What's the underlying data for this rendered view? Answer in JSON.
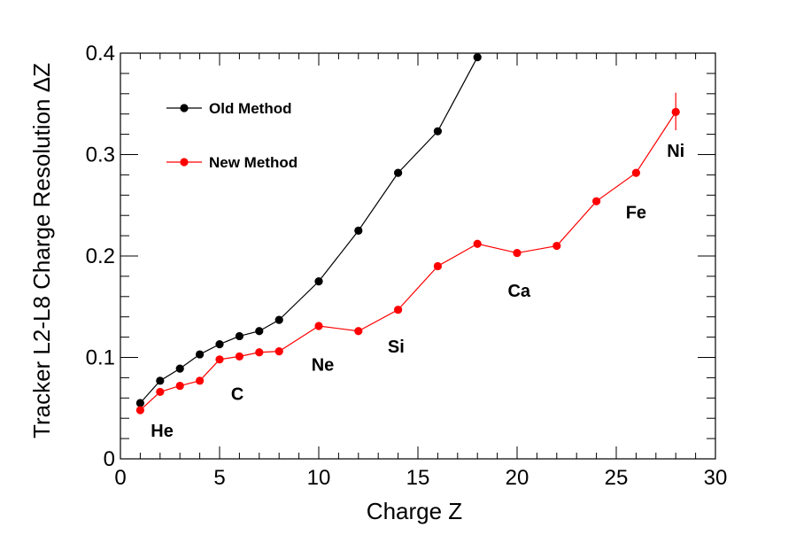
{
  "chart_data": {
    "type": "line",
    "xlabel": "Charge Z",
    "ylabel": "Tracker L2-L8 Charge Resolution ΔZ",
    "xlim": [
      0,
      30
    ],
    "ylim": [
      0,
      0.4
    ],
    "x_ticks": [
      0,
      5,
      10,
      15,
      20,
      25,
      30
    ],
    "x_tick_labels": [
      "0",
      "5",
      "10",
      "15",
      "20",
      "25",
      "30"
    ],
    "y_ticks": [
      0,
      0.1,
      0.2,
      0.3,
      0.4
    ],
    "y_tick_labels": [
      "0",
      "0.1",
      "0.2",
      "0.3",
      "0.4"
    ],
    "grid": false,
    "legend_position": "top-left",
    "series": [
      {
        "name": "Old Method",
        "color": "#000000",
        "x": [
          1,
          2,
          3,
          4,
          5,
          6,
          7,
          8,
          10,
          12,
          14,
          16,
          18
        ],
        "y": [
          0.055,
          0.077,
          0.089,
          0.103,
          0.113,
          0.121,
          0.126,
          0.137,
          0.175,
          0.225,
          0.282,
          0.323,
          0.396
        ]
      },
      {
        "name": "New Method",
        "color": "#ff0000",
        "x": [
          1,
          2,
          3,
          4,
          5,
          6,
          7,
          8,
          10,
          12,
          14,
          16,
          18,
          20,
          22,
          24,
          26,
          28
        ],
        "y": [
          0.048,
          0.066,
          0.072,
          0.077,
          0.098,
          0.101,
          0.105,
          0.106,
          0.131,
          0.126,
          0.147,
          0.19,
          0.212,
          0.203,
          0.21,
          0.254,
          0.282,
          0.342
        ],
        "error_bars": [
          {
            "x": 28,
            "low": 0.324,
            "high": 0.361
          }
        ]
      }
    ],
    "annotations": [
      {
        "text": "He",
        "x": 2.1,
        "y": 0.022
      },
      {
        "text": "C",
        "x": 5.9,
        "y": 0.058
      },
      {
        "text": "Ne",
        "x": 10.2,
        "y": 0.087
      },
      {
        "text": "Si",
        "x": 13.9,
        "y": 0.105
      },
      {
        "text": "Ca",
        "x": 20.1,
        "y": 0.16
      },
      {
        "text": "Fe",
        "x": 26.0,
        "y": 0.237
      },
      {
        "text": "Ni",
        "x": 28.0,
        "y": 0.298
      }
    ]
  }
}
